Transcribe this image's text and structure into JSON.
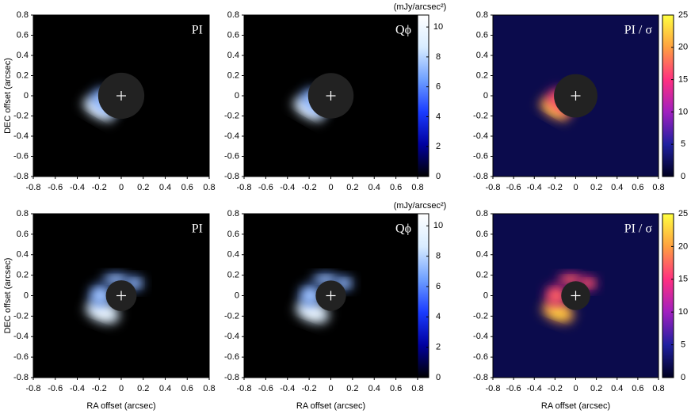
{
  "chart_data": [
    {
      "type": "heatmap",
      "title": "PI",
      "ylabel": "DEC offset (arcsec)",
      "colormap": [
        "#000000",
        "#0000a0",
        "#1a3cff",
        "#6fa0ff",
        "#d8ecff",
        "#ffffff"
      ],
      "xlim": [
        -0.8,
        0.8
      ],
      "ylim": [
        -0.8,
        0.8
      ],
      "xticks": [
        -0.8,
        -0.6,
        -0.4,
        -0.2,
        0,
        0.2,
        0.4,
        0.6,
        0.8
      ],
      "yticks": [
        -0.8,
        -0.6,
        -0.4,
        -0.2,
        0,
        0.2,
        0.4,
        0.6,
        0.8
      ]
    },
    {
      "type": "heatmap",
      "title": "Qϕ",
      "colormap": [
        "#000000",
        "#0000a0",
        "#1a3cff",
        "#6fa0ff",
        "#d8ecff",
        "#ffffff"
      ],
      "xlim": [
        -0.8,
        0.8
      ],
      "ylim": [
        -0.8,
        0.8
      ],
      "xticks": [
        -0.8,
        -0.6,
        -0.4,
        -0.2,
        0,
        0.2,
        0.4,
        0.6,
        0.8
      ],
      "yticks": [
        -0.8,
        -0.6,
        -0.4,
        -0.2,
        0,
        0.2,
        0.4,
        0.6,
        0.8
      ],
      "colorbar": {
        "label": "(mJy/arcsec²)",
        "lim": [
          0,
          10.8
        ],
        "ticks": [
          0,
          2,
          4,
          6,
          8,
          10
        ]
      }
    },
    {
      "type": "heatmap",
      "title": "PI / σ",
      "colormap": [
        "#000020",
        "#2020a0",
        "#a020c0",
        "#ff3080",
        "#ffa040",
        "#ffff40"
      ],
      "xlim": [
        -0.8,
        0.8
      ],
      "ylim": [
        -0.8,
        0.8
      ],
      "xticks": [
        -0.8,
        -0.6,
        -0.4,
        -0.2,
        0,
        0.2,
        0.4,
        0.6,
        0.8
      ],
      "yticks": [
        -0.8,
        -0.6,
        -0.4,
        -0.2,
        0,
        0.2,
        0.4,
        0.6,
        0.8
      ],
      "colorbar": {
        "lim": [
          0,
          25
        ],
        "ticks": [
          0,
          5,
          10,
          15,
          20,
          25
        ]
      }
    },
    {
      "type": "heatmap",
      "title": "PI",
      "xlabel": "RA offset  (arcsec)",
      "ylabel": "DEC offset (arcsec)",
      "colormap": [
        "#000000",
        "#0000a0",
        "#1a3cff",
        "#6fa0ff",
        "#d8ecff",
        "#ffffff"
      ],
      "xlim": [
        -0.8,
        0.8
      ],
      "ylim": [
        -0.8,
        0.8
      ],
      "xticks": [
        -0.8,
        -0.6,
        -0.4,
        -0.2,
        0,
        0.2,
        0.4,
        0.6,
        0.8
      ],
      "yticks": [
        -0.8,
        -0.6,
        -0.4,
        -0.2,
        0,
        0.2,
        0.4,
        0.6,
        0.8
      ]
    },
    {
      "type": "heatmap",
      "title": "Qϕ",
      "xlabel": "RA offset  (arcsec)",
      "colormap": [
        "#000000",
        "#0000a0",
        "#1a3cff",
        "#6fa0ff",
        "#d8ecff",
        "#ffffff"
      ],
      "xlim": [
        -0.8,
        0.8
      ],
      "ylim": [
        -0.8,
        0.8
      ],
      "xticks": [
        -0.8,
        -0.6,
        -0.4,
        -0.2,
        0,
        0.2,
        0.4,
        0.6,
        0.8
      ],
      "yticks": [
        -0.8,
        -0.6,
        -0.4,
        -0.2,
        0,
        0.2,
        0.4,
        0.6,
        0.8
      ],
      "colorbar": {
        "label": "(mJy/arcsec²)",
        "lim": [
          0,
          10.8
        ],
        "ticks": [
          0,
          2,
          4,
          6,
          8,
          10
        ]
      }
    },
    {
      "type": "heatmap",
      "title": "PI / σ",
      "xlabel": "RA offset  (arcsec)",
      "colormap": [
        "#000020",
        "#2020a0",
        "#a020c0",
        "#ff3080",
        "#ffa040",
        "#ffff40"
      ],
      "xlim": [
        -0.8,
        0.8
      ],
      "ylim": [
        -0.8,
        0.8
      ],
      "xticks": [
        -0.8,
        -0.6,
        -0.4,
        -0.2,
        0,
        0.2,
        0.4,
        0.6,
        0.8
      ],
      "yticks": [
        -0.8,
        -0.6,
        -0.4,
        -0.2,
        0,
        0.2,
        0.4,
        0.6,
        0.8
      ],
      "colorbar": {
        "lim": [
          0,
          25
        ],
        "ticks": [
          0,
          5,
          10,
          15,
          20,
          25
        ]
      }
    }
  ]
}
